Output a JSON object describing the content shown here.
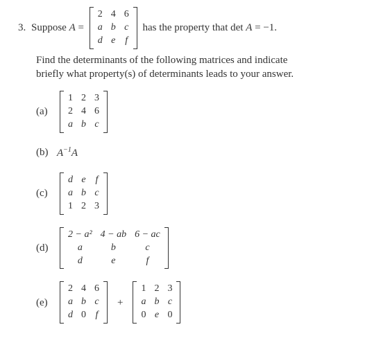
{
  "problem": {
    "number": "3.",
    "lead_text": "Suppose ",
    "A_eq": "A",
    "eq_sign": " = ",
    "after_matrix": " has the property that det ",
    "det_A": "A",
    "det_eq": " = ",
    "minus_one": "−1.",
    "matrix_A": {
      "rows": [
        [
          "2",
          "4",
          "6"
        ],
        [
          "a",
          "b",
          "c"
        ],
        [
          "d",
          "e",
          "f"
        ]
      ],
      "italic_rows": [
        false,
        true,
        true
      ]
    },
    "instruction_line1": "Find the determinants of the following matrices and indicate",
    "instruction_line2": "briefly what property(s) of determinants leads to your answer."
  },
  "parts": {
    "a": {
      "label": "(a)",
      "matrix": {
        "rows": [
          [
            "1",
            "2",
            "3"
          ],
          [
            "2",
            "4",
            "6"
          ],
          [
            "a",
            "b",
            "c"
          ]
        ],
        "italic_rows": [
          false,
          false,
          true
        ]
      }
    },
    "b": {
      "label": "(b)",
      "expr_A1": "A",
      "expr_sup": "−1",
      "expr_A2": "A"
    },
    "c": {
      "label": "(c)",
      "matrix": {
        "rows": [
          [
            "d",
            "e",
            "f"
          ],
          [
            "a",
            "b",
            "c"
          ],
          [
            "1",
            "2",
            "3"
          ]
        ],
        "italic_rows": [
          true,
          true,
          false
        ]
      }
    },
    "d": {
      "label": "(d)",
      "matrix": {
        "rows": [
          [
            "2 − a²",
            "4 − ab",
            "6 − ac"
          ],
          [
            "a",
            "b",
            "c"
          ],
          [
            "d",
            "e",
            "f"
          ]
        ],
        "italic_rows": [
          true,
          true,
          true
        ]
      }
    },
    "e": {
      "label": "(e)",
      "matrix1": {
        "rows": [
          [
            "2",
            "4",
            "6"
          ],
          [
            "a",
            "b",
            "c"
          ],
          [
            "d",
            "0",
            "f"
          ]
        ],
        "italic_rows": [
          false,
          true,
          true
        ],
        "plain_zero": true
      },
      "plus": "+",
      "matrix2": {
        "rows": [
          [
            "1",
            "2",
            "3"
          ],
          [
            "a",
            "b",
            "c"
          ],
          [
            "0",
            "e",
            "0"
          ]
        ],
        "italic_rows": [
          false,
          true,
          true
        ],
        "plain_zero": true
      }
    }
  }
}
